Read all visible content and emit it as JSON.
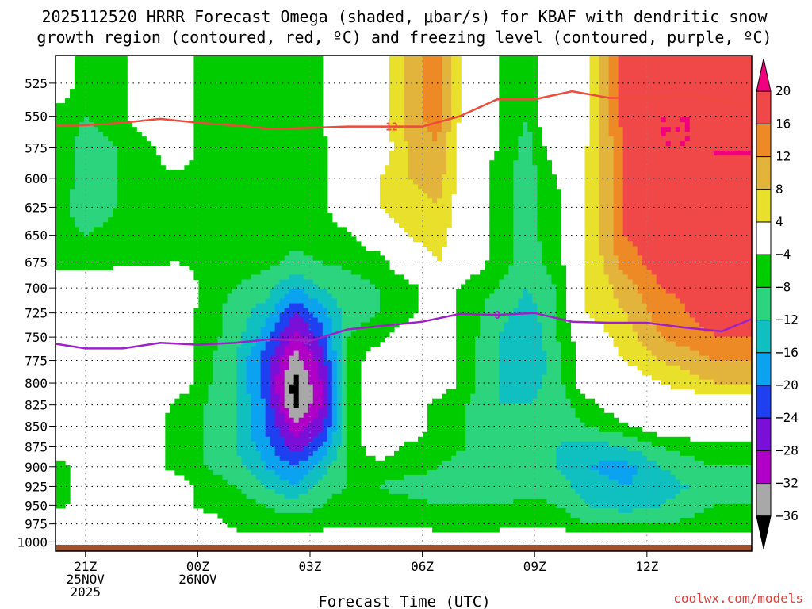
{
  "chart_data": {
    "type": "heatmap",
    "title_lines": [
      "2025112520 HRRR Forecast Omega (shaded, μbar/s) for KBAF with dendritic snow",
      "growth region (contoured, red, ºC) and freezing level (contoured, purple, ºC)"
    ],
    "xlabel": "Forecast Time (UTC)",
    "credit": "coolwx.com/models",
    "grid": true,
    "legend_placement": "right",
    "x_hours": [
      21,
      22,
      23,
      24,
      25,
      26,
      27,
      28,
      29,
      30,
      31,
      32,
      33,
      34,
      35,
      36,
      37,
      38,
      39
    ],
    "x_range": [
      20.2,
      38.8
    ],
    "x_ticks": [
      {
        "hour": 21,
        "lines": [
          "21Z",
          "25NOV",
          "2025"
        ]
      },
      {
        "hour": 24,
        "lines": [
          "00Z",
          "26NOV"
        ]
      },
      {
        "hour": 27,
        "lines": [
          "03Z"
        ]
      },
      {
        "hour": 30,
        "lines": [
          "06Z"
        ]
      },
      {
        "hour": 33,
        "lines": [
          "09Z"
        ]
      },
      {
        "hour": 36,
        "lines": [
          "12Z"
        ]
      }
    ],
    "y_levels": [
      525,
      550,
      575,
      600,
      625,
      650,
      675,
      700,
      725,
      750,
      775,
      800,
      825,
      850,
      875,
      900,
      925,
      950,
      975,
      1000
    ],
    "y_scale": "log",
    "y_range": [
      505,
      1013
    ],
    "colorbar": {
      "ticks": [
        20,
        16,
        12,
        8,
        4,
        -4,
        -8,
        -12,
        -16,
        -20,
        -24,
        -28,
        -32,
        -36
      ],
      "colors": [
        "#f0007e",
        "#f04848",
        "#ed8a26",
        "#e3b43c",
        "#e8e02a",
        "#ffffff",
        "#00cc00",
        "#2bd47d",
        "#10c0c0",
        "#0ba3f0",
        "#1e40f0",
        "#7a10d8",
        "#b000c8",
        "#a8a8a8",
        "#000000"
      ]
    },
    "surface_color": "#a0522d",
    "omega_bands": [
      {
        "value": -4,
        "color": "#00cc00",
        "points": [
          [
            20.5,
            505
          ],
          [
            21.1,
            505
          ],
          [
            21.1,
            505
          ],
          [
            20.5,
            505
          ]
        ]
      }
    ],
    "omega_grid": {
      "levels": [
        525,
        550,
        575,
        600,
        625,
        650,
        675,
        700,
        725,
        750,
        775,
        800,
        825,
        850,
        875,
        900,
        925,
        950,
        975,
        1000
      ],
      "rows": [
        [
          0,
          -8,
          -6,
          0,
          0,
          -6,
          -4,
          -4,
          -7,
          -4,
          0,
          0,
          10,
          14,
          0,
          -4,
          -8,
          4,
          2,
          18,
          20,
          18
        ],
        [
          -6,
          -8,
          -6,
          0,
          0,
          -6,
          -6,
          -4,
          -7,
          -4,
          0,
          0,
          10,
          14,
          0,
          -4,
          -8,
          4,
          3,
          18,
          20,
          20
        ],
        [
          -6,
          -10,
          -8,
          -6,
          0,
          -6,
          -6,
          -5,
          -7,
          -5,
          0,
          0,
          8,
          12,
          0,
          -4,
          -10,
          0,
          4,
          16,
          20,
          20
        ],
        [
          -6,
          -10,
          -8,
          -6,
          -5,
          -6,
          -6,
          -5,
          -7,
          -5,
          0,
          4,
          8,
          10,
          0,
          -6,
          -10,
          -4,
          4,
          16,
          18,
          20
        ],
        [
          -6,
          -12,
          -8,
          -6,
          -5,
          -6,
          -6,
          -5,
          -7,
          -5,
          0,
          4,
          6,
          8,
          0,
          -6,
          -10,
          -5,
          4,
          16,
          18,
          20
        ],
        [
          -6,
          -8,
          -6,
          -6,
          -5,
          -6,
          -6,
          -6,
          -7,
          -6,
          -5,
          0,
          4,
          6,
          0,
          -6,
          -10,
          -5,
          4,
          16,
          18,
          20
        ],
        [
          -6,
          -6,
          -5,
          -5,
          -4,
          -5,
          -6,
          -7,
          -9,
          -8,
          -7,
          -6,
          0,
          4,
          0,
          -6,
          -10,
          -6,
          4,
          14,
          18,
          20
        ],
        [
          0,
          0,
          0,
          0,
          0,
          -5,
          -8,
          -10,
          -16,
          -12,
          -10,
          -8,
          -6,
          0,
          -6,
          -8,
          -12,
          -8,
          4,
          10,
          16,
          18
        ],
        [
          0,
          0,
          0,
          0,
          0,
          -6,
          -10,
          -14,
          -24,
          -18,
          -10,
          -8,
          -6,
          0,
          -6,
          -10,
          -14,
          -8,
          4,
          8,
          14,
          18
        ],
        [
          0,
          0,
          0,
          0,
          0,
          -6,
          -10,
          -18,
          -30,
          -22,
          -8,
          -6,
          0,
          0,
          -6,
          -12,
          -16,
          -8,
          0,
          6,
          12,
          16
        ],
        [
          0,
          0,
          0,
          0,
          0,
          -7,
          -12,
          -22,
          -34,
          -26,
          -8,
          0,
          0,
          0,
          -6,
          -12,
          -16,
          -10,
          0,
          4,
          8,
          12
        ],
        [
          0,
          0,
          0,
          0,
          0,
          -7,
          -12,
          -22,
          -38,
          -28,
          -8,
          0,
          0,
          0,
          -6,
          -12,
          -14,
          -10,
          0,
          0,
          4,
          8
        ],
        [
          0,
          0,
          0,
          0,
          -5,
          -8,
          -12,
          -20,
          -38,
          -28,
          -8,
          0,
          0,
          -6,
          -8,
          -12,
          -12,
          -10,
          -6,
          0,
          0,
          0
        ],
        [
          0,
          0,
          0,
          0,
          -6,
          -8,
          -12,
          -20,
          -30,
          -26,
          -8,
          0,
          0,
          -6,
          -8,
          -10,
          -10,
          -10,
          -8,
          -5,
          0,
          0
        ],
        [
          0,
          0,
          0,
          0,
          -6,
          -8,
          -12,
          -18,
          -26,
          -20,
          -8,
          0,
          -5,
          -6,
          -8,
          -10,
          -10,
          -12,
          -14,
          -12,
          -8,
          -5
        ],
        [
          -6,
          0,
          0,
          0,
          -6,
          -8,
          -10,
          -16,
          -20,
          -14,
          -8,
          -6,
          -6,
          -8,
          -10,
          -10,
          -10,
          -12,
          -16,
          -18,
          -12,
          -8
        ],
        [
          -6,
          0,
          0,
          0,
          0,
          -6,
          -8,
          -12,
          -16,
          -10,
          -8,
          -8,
          -10,
          -10,
          -12,
          -12,
          -10,
          -10,
          -14,
          -16,
          -14,
          -10
        ],
        [
          -5,
          0,
          0,
          0,
          0,
          -6,
          -6,
          -8,
          -10,
          -8,
          -6,
          -6,
          -6,
          -8,
          -8,
          -8,
          -6,
          -8,
          -12,
          -14,
          -12,
          -8
        ],
        [
          0,
          0,
          0,
          0,
          0,
          0,
          -6,
          -6,
          -6,
          -6,
          -5,
          -5,
          -5,
          -6,
          -6,
          -6,
          -5,
          -5,
          -8,
          -8,
          -8,
          -6
        ],
        [
          0,
          0,
          0,
          0,
          0,
          0,
          0,
          0,
          0,
          0,
          0,
          0,
          0,
          0,
          0,
          0,
          0,
          0,
          0,
          0,
          0,
          0
        ]
      ],
      "hours": [
        20.4,
        21.0,
        21.8,
        22.6,
        23.4,
        24.2,
        25.0,
        25.8,
        26.6,
        27.3,
        28.0,
        28.8,
        29.6,
        30.4,
        31.2,
        32.0,
        32.8,
        33.6,
        34.4,
        35.4,
        36.4,
        37.8
      ]
    },
    "dendritic_line": {
      "label": "-12",
      "color": "#f04a3a",
      "points": [
        [
          20.2,
          557
        ],
        [
          21.0,
          557
        ],
        [
          22.0,
          555
        ],
        [
          23.0,
          552
        ],
        [
          24.0,
          555
        ],
        [
          25.0,
          557
        ],
        [
          26.0,
          560
        ],
        [
          27.0,
          559
        ],
        [
          28.0,
          558
        ],
        [
          29.0,
          558
        ],
        [
          30.0,
          558
        ],
        [
          31.0,
          550
        ],
        [
          32.0,
          537
        ],
        [
          33.0,
          537
        ],
        [
          34.0,
          531
        ],
        [
          35.0,
          536
        ],
        [
          36.0,
          536
        ],
        [
          37.0,
          533
        ],
        [
          38.0,
          538
        ],
        [
          38.8,
          542
        ]
      ],
      "label_hour": 29.1
    },
    "freezing_line": {
      "label": "0",
      "color": "#a020c8",
      "points": [
        [
          20.2,
          757
        ],
        [
          21.0,
          762
        ],
        [
          22.0,
          762
        ],
        [
          23.0,
          756
        ],
        [
          24.0,
          758
        ],
        [
          25.0,
          756
        ],
        [
          26.0,
          752
        ],
        [
          27.0,
          754
        ],
        [
          28.0,
          742
        ],
        [
          29.0,
          738
        ],
        [
          30.0,
          734
        ],
        [
          31.0,
          726
        ],
        [
          32.0,
          727
        ],
        [
          33.0,
          725
        ],
        [
          34.0,
          734
        ],
        [
          35.0,
          735
        ],
        [
          36.0,
          735
        ],
        [
          37.0,
          740
        ],
        [
          38.0,
          744
        ],
        [
          38.8,
          731
        ]
      ],
      "label_hour": 26.9,
      "label2_hour": 32.0
    }
  }
}
